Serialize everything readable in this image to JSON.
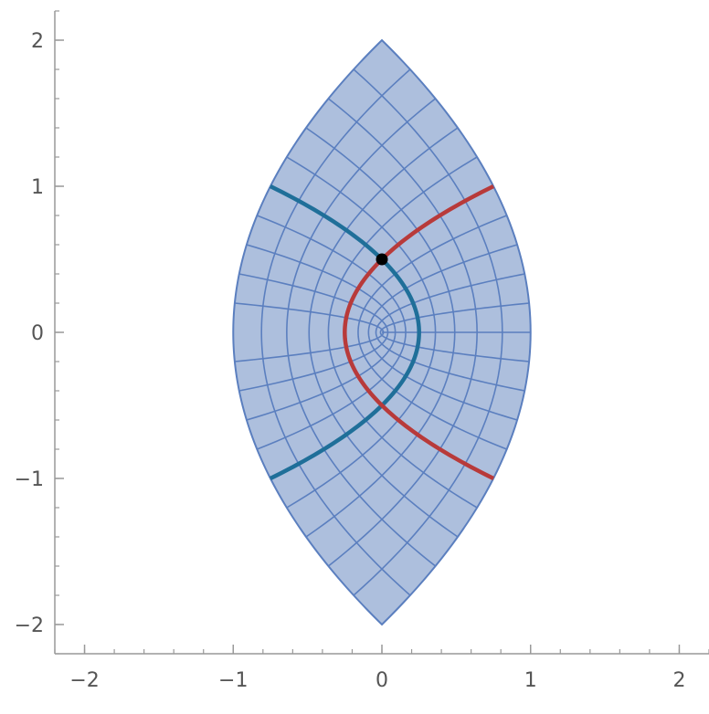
{
  "chart_data": {
    "type": "line",
    "title": "",
    "xlabel": "",
    "ylabel": "",
    "xlim": [
      -2.2,
      2.2
    ],
    "ylim": [
      -2.2,
      2.2
    ],
    "grid": false,
    "x_ticks": [
      {
        "value": -2,
        "label": "−2"
      },
      {
        "value": -1,
        "label": "−1"
      },
      {
        "value": 0,
        "label": "0"
      },
      {
        "value": 1,
        "label": "1"
      },
      {
        "value": 2,
        "label": "2"
      }
    ],
    "y_ticks": [
      {
        "value": 2,
        "label": "2"
      },
      {
        "value": 1,
        "label": "1"
      },
      {
        "value": 0,
        "label": "0"
      },
      {
        "value": -1,
        "label": "−1"
      },
      {
        "value": -2,
        "label": "−2"
      }
    ],
    "region": {
      "description": "image of the square [-1,1]x[-1,1] under w = z^2 / 2 style map: points (u^2 - v^2, 2uv)-like lens",
      "boundary_u": [
        -1,
        1
      ],
      "boundary_v": [
        -1,
        1
      ],
      "grid_steps": 10,
      "fill_color": "#adbfdd",
      "grid_color": "#5b7fbf",
      "border_color": "#5b7fbf"
    },
    "series": [
      {
        "color": "#1f6f99",
        "x": [
          -0.75,
          -0.5,
          -0.25,
          0.0,
          0.15,
          0.25,
          0.15,
          0.0,
          -0.25,
          -0.5,
          -0.75
        ],
        "y": [
          1.0,
          0.85,
          0.7,
          0.5,
          0.3,
          0.0,
          -0.3,
          -0.5,
          -0.7,
          -0.85,
          -1.0
        ]
      },
      {
        "color": "#b83a3a",
        "x": [
          0.75,
          0.5,
          0.25,
          0.0,
          -0.15,
          -0.25,
          -0.15,
          0.0,
          0.25,
          0.5,
          0.75
        ],
        "y": [
          1.0,
          0.85,
          0.7,
          0.5,
          0.3,
          0.0,
          -0.3,
          -0.5,
          -0.7,
          -0.85,
          -1.0
        ]
      }
    ],
    "points": [
      {
        "x": 0.0,
        "y": 0.5,
        "color": "#000000"
      }
    ]
  }
}
